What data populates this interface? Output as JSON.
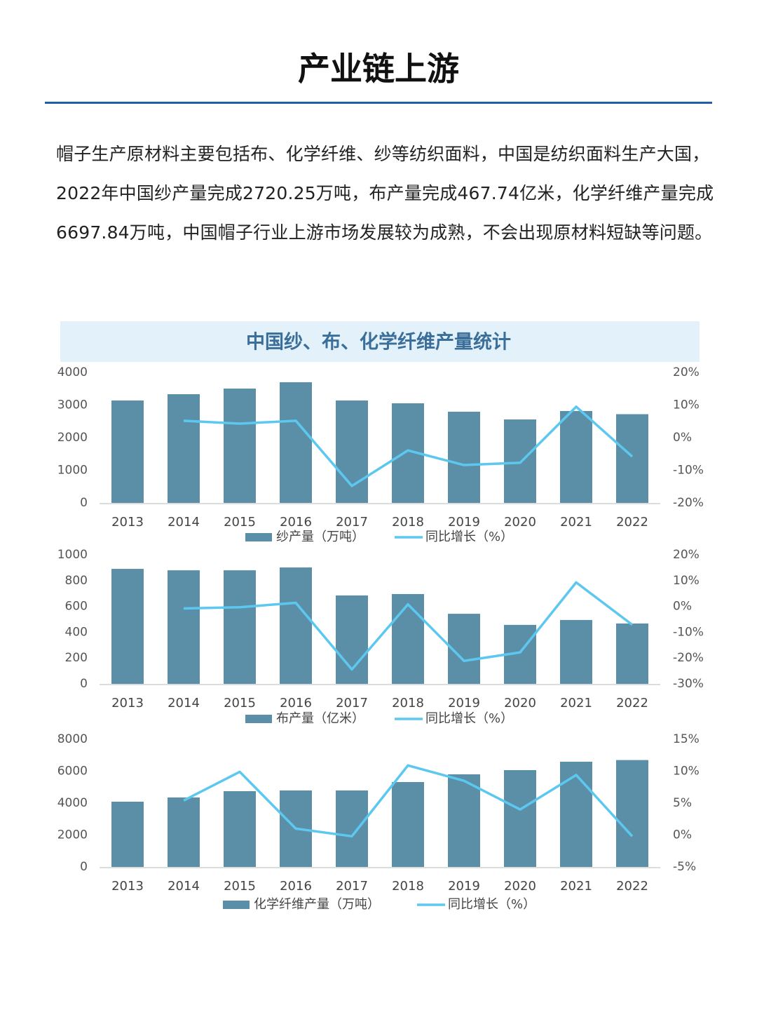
{
  "title": "产业链上游",
  "paragraph": "帽子生产原材料主要包括布、化学纤维、纱等纺织面料，中国是纺织面料生产大国，2022年中国纱产量完成2720.25万吨，布产量完成467.74亿米，化学纤维产量完成6697.84万吨，中国帽子行业上游市场发展较为成熟，不会出现原材料短缺等问题。",
  "figure_title": "中国纱、布、化学纤维产量统计",
  "chart_data": [
    {
      "type": "combo",
      "categories": [
        "2013",
        "2014",
        "2015",
        "2016",
        "2017",
        "2018",
        "2019",
        "2020",
        "2021",
        "2022"
      ],
      "series": [
        {
          "name": "纱产量（万吨）",
          "color": "#5b8fa8",
          "values": [
            3140,
            3333,
            3505,
            3699,
            3140,
            3054,
            2796,
            2559,
            2817,
            2720.25
          ]
        },
        {
          "name": "同比增长（%）",
          "color": "#5cc8f0",
          "axis": "y2",
          "values": [
            null,
            5.2,
            4.3,
            5.2,
            -14.8,
            -3.9,
            -8.4,
            -7.7,
            9.5,
            -5.8
          ]
        }
      ],
      "ylim": [
        0,
        4000
      ],
      "yticks": [
        0,
        1000,
        2000,
        3000,
        4000
      ],
      "y2lim": [
        -20,
        20
      ],
      "y2ticks": [
        {
          "value": -20,
          "label": "-20%"
        },
        {
          "value": -10,
          "label": "-10%"
        },
        {
          "value": 0,
          "label": "0%"
        },
        {
          "value": 10,
          "label": "10%"
        },
        {
          "value": 20,
          "label": "20%"
        }
      ]
    },
    {
      "type": "combo",
      "categories": [
        "2013",
        "2014",
        "2015",
        "2016",
        "2017",
        "2018",
        "2019",
        "2020",
        "2021",
        "2022"
      ],
      "series": [
        {
          "name": "布产量（亿米）",
          "color": "#5b8fa8",
          "values": [
            891,
            880,
            880,
            902,
            685,
            696,
            543,
            457,
            495,
            467.74
          ]
        },
        {
          "name": "同比增长（%）",
          "color": "#5cc8f0",
          "axis": "y2",
          "values": [
            null,
            -0.8,
            -0.3,
            1.4,
            -24.4,
            0.8,
            -21.1,
            -17.8,
            9.3,
            -7.1
          ]
        }
      ],
      "ylim": [
        0,
        1000
      ],
      "yticks": [
        0,
        200,
        400,
        600,
        800,
        1000
      ],
      "y2lim": [
        -30,
        20
      ],
      "y2ticks": [
        {
          "value": -30,
          "label": "-30%"
        },
        {
          "value": -20,
          "label": "-20%"
        },
        {
          "value": -10,
          "label": "-10%"
        },
        {
          "value": 0,
          "label": "0%"
        },
        {
          "value": 10,
          "label": "10%"
        },
        {
          "value": 20,
          "label": "20%"
        }
      ]
    },
    {
      "type": "combo",
      "categories": [
        "2013",
        "2014",
        "2015",
        "2016",
        "2017",
        "2018",
        "2019",
        "2020",
        "2021",
        "2022"
      ],
      "series": [
        {
          "name": "化学纤维产量（万吨）",
          "color": "#5b8fa8",
          "values": [
            4088,
            4352,
            4747,
            4791,
            4791,
            5319,
            5802,
            6066,
            6593,
            6697.84
          ]
        },
        {
          "name": "同比增长（%）",
          "color": "#5cc8f0",
          "axis": "y2",
          "values": [
            null,
            5.4,
            9.9,
            1.0,
            -0.2,
            10.9,
            8.5,
            4.0,
            9.4,
            -0.2
          ]
        }
      ],
      "ylim": [
        0,
        8000
      ],
      "yticks": [
        0,
        2000,
        4000,
        6000,
        8000
      ],
      "y2lim": [
        -5,
        15
      ],
      "y2ticks": [
        {
          "value": -5,
          "label": "-5%"
        },
        {
          "value": 0,
          "label": "0%"
        },
        {
          "value": 5,
          "label": "5%"
        },
        {
          "value": 10,
          "label": "10%"
        },
        {
          "value": 15,
          "label": "15%"
        }
      ]
    }
  ]
}
